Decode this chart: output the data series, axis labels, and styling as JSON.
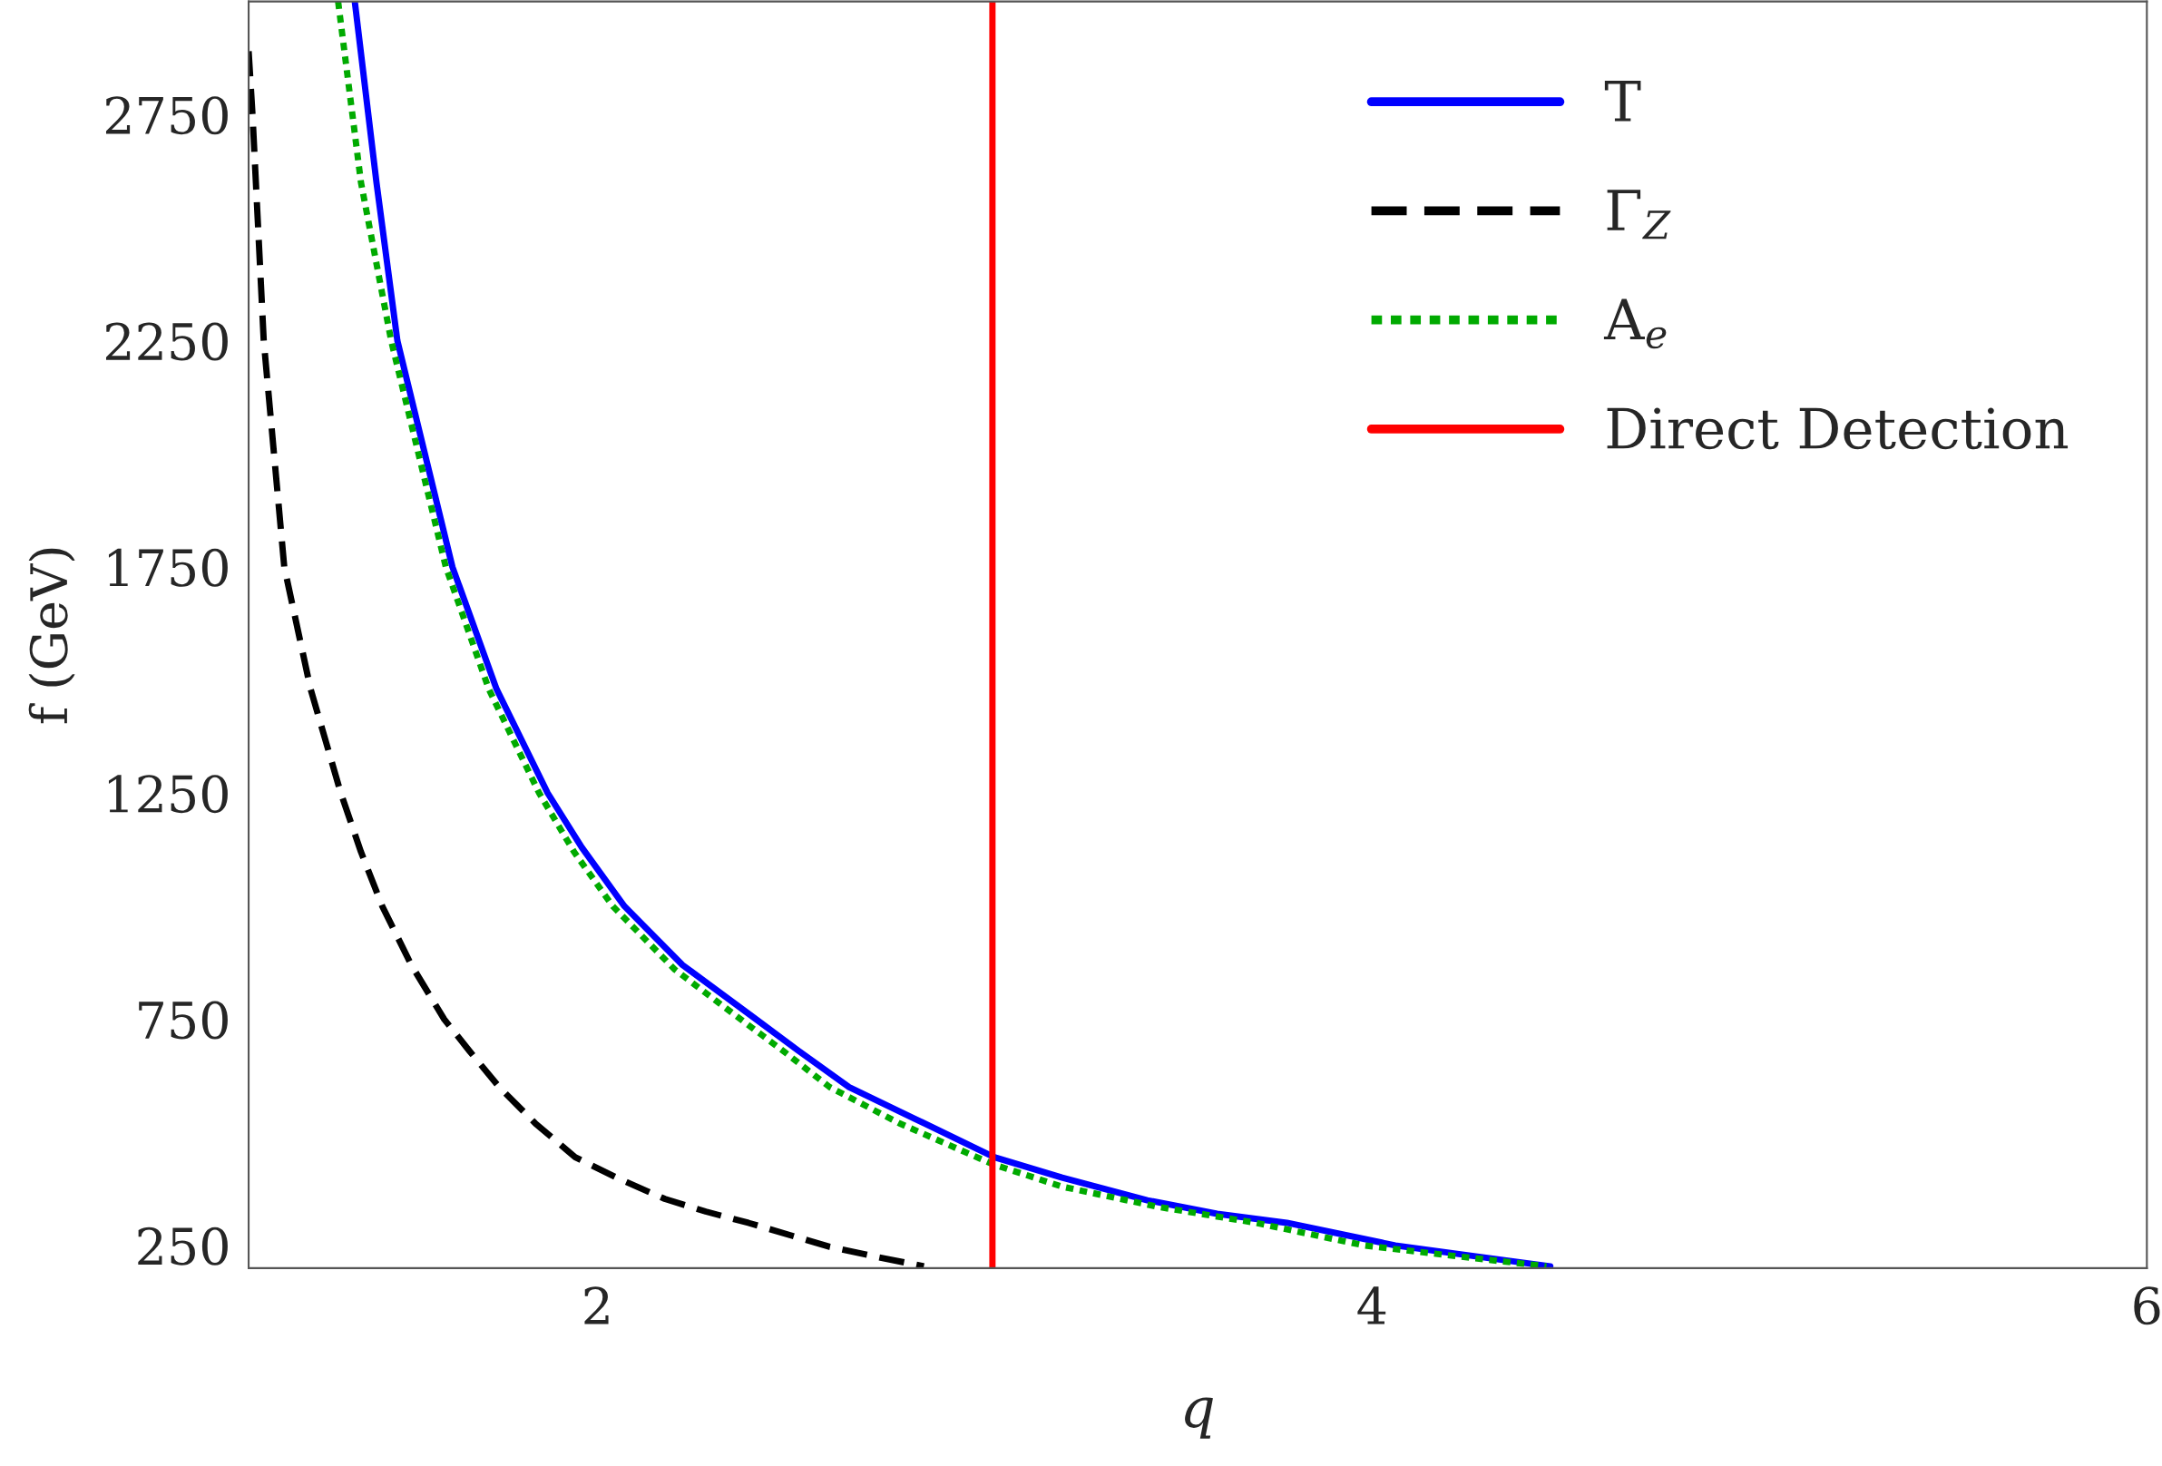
{
  "chart_data": {
    "type": "line",
    "xlabel": "q",
    "ylabel": "f (GeV)",
    "xlim": [
      1.1,
      6
    ],
    "ylim": [
      200,
      3000
    ],
    "xticks": [
      2,
      4,
      6
    ],
    "yticks": [
      250,
      750,
      1250,
      1750,
      2250,
      2750
    ],
    "grid": false,
    "legend": "top right",
    "marker": "none",
    "series": [
      {
        "name": "T",
        "color": "#0000ff",
        "line_style": "solid",
        "x": [
          1.374,
          1.43,
          1.484,
          1.626,
          1.74,
          1.872,
          1.96,
          2.07,
          2.22,
          2.41,
          2.52,
          2.65,
          2.82,
          3.025,
          3.2,
          3.42,
          3.6,
          3.78,
          4.06,
          4.25,
          4.46
        ],
        "values": [
          3000,
          2600,
          2250,
          1750,
          1480,
          1250,
          1130,
          1000,
          870,
          750,
          680,
          600,
          530,
          445,
          400,
          350,
          320,
          300,
          250,
          228,
          204
        ]
      },
      {
        "name": "Γ$_{Z}$",
        "color": "#000000",
        "line_style": "dashed",
        "x": [
          1.1,
          1.11,
          1.139,
          1.192,
          1.26,
          1.338,
          1.39,
          1.445,
          1.52,
          1.605,
          1.67,
          1.747,
          1.84,
          1.943,
          2.05,
          2.174,
          2.28,
          2.39,
          2.6,
          2.72,
          2.843
        ],
        "values": [
          2890,
          2750,
          2250,
          1750,
          1480,
          1250,
          1120,
          1000,
          870,
          750,
          680,
          600,
          520,
          445,
          400,
          353,
          325,
          300,
          247,
          225,
          204
        ]
      },
      {
        "name": "A$_{e}$",
        "color": "#00aa00",
        "line_style": "dotted",
        "x": [
          1.331,
          1.39,
          1.468,
          1.609,
          1.72,
          1.85,
          1.94,
          2.04,
          2.2,
          2.37,
          2.48,
          2.6,
          2.78,
          3.02,
          3.2,
          3.45,
          3.7,
          3.98,
          4.2,
          4.45
        ],
        "values": [
          3000,
          2600,
          2250,
          1750,
          1480,
          1250,
          1120,
          1000,
          860,
          750,
          680,
          600,
          520,
          430,
          380,
          335,
          300,
          250,
          228,
          204
        ]
      },
      {
        "name": "Direct Detection",
        "color": "#ff0000",
        "line_style": "solid",
        "x": [
          3.02,
          3.02
        ],
        "values": [
          200,
          3000
        ]
      }
    ]
  }
}
